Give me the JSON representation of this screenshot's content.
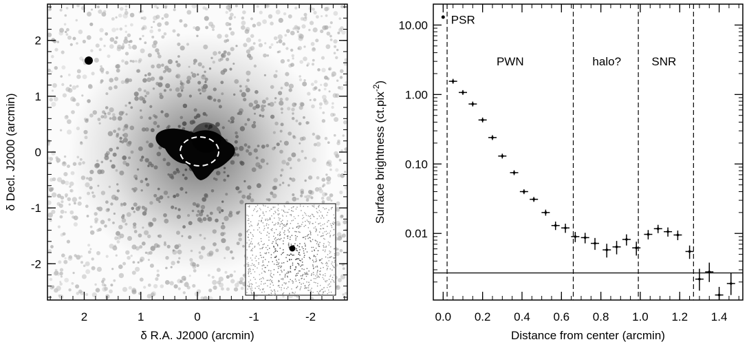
{
  "chart_data": [
    {
      "type": "image",
      "xlabel": "δ R.A. J2000 (arcmin)",
      "ylabel": "δ Decl. J2000 (arcmin)",
      "xlim": [
        2.65,
        -2.65
      ],
      "ylim": [
        -2.65,
        2.65
      ],
      "xticks": [
        2,
        1,
        0,
        -1,
        -2
      ],
      "xtick_labels": [
        "2",
        "1",
        "0",
        "-1",
        "-2"
      ],
      "yticks": [
        2,
        1,
        0,
        -1,
        -2
      ],
      "ytick_labels": [
        "2",
        "1",
        "0",
        "-1",
        "-2"
      ],
      "colormap": "inverted grayscale",
      "inset": true
    },
    {
      "type": "scatter",
      "error_bars": true,
      "xlabel": "Distance from center (arcmin)",
      "ylabel_main": "Surface brightness (ct.pix",
      "ylabel_sup": "-2",
      "ylabel_end": ")",
      "xlim": [
        -0.05,
        1.52
      ],
      "ylim": [
        0.0011,
        20
      ],
      "yscale": "log",
      "xticks": [
        0.0,
        0.2,
        0.4,
        0.6,
        0.8,
        1.0,
        1.2,
        1.4
      ],
      "xtick_labels": [
        "0.0",
        "0.2",
        "0.4",
        "0.6",
        "0.8",
        "1.0",
        "1.2",
        "1.4"
      ],
      "yticks": [
        10,
        1,
        0.1,
        0.01
      ],
      "ytick_labels": [
        "10.00",
        "1.00",
        "0.10",
        "0.01"
      ],
      "x": [
        0.0,
        0.05,
        0.1,
        0.15,
        0.2,
        0.25,
        0.3,
        0.36,
        0.41,
        0.46,
        0.52,
        0.57,
        0.62,
        0.67,
        0.72,
        0.77,
        0.83,
        0.88,
        0.93,
        0.98,
        1.04,
        1.09,
        1.14,
        1.19,
        1.25,
        1.3,
        1.35,
        1.4,
        1.46
      ],
      "y": [
        13.0,
        1.55,
        1.07,
        0.73,
        0.43,
        0.24,
        0.13,
        0.075,
        0.04,
        0.031,
        0.02,
        0.013,
        0.012,
        0.009,
        0.0087,
        0.0072,
        0.0058,
        0.0064,
        0.0082,
        0.0062,
        0.0097,
        0.0117,
        0.0106,
        0.0095,
        0.0055,
        0.0022,
        0.0028,
        0.0013,
        0.0019
      ],
      "yerr_lo": [
        0,
        0.04,
        0.03,
        0.02,
        0.015,
        0.01,
        0.006,
        0.004,
        0.003,
        0.0025,
        0.002,
        0.0018,
        0.0018,
        0.0015,
        0.0015,
        0.0014,
        0.0013,
        0.0014,
        0.0015,
        0.0014,
        0.0015,
        0.0016,
        0.0016,
        0.0015,
        0.0012,
        0.0007,
        0.0008,
        0.0002,
        0.0006
      ],
      "yerr_hi": [
        0,
        0.04,
        0.03,
        0.02,
        0.015,
        0.01,
        0.006,
        0.004,
        0.003,
        0.0025,
        0.002,
        0.0018,
        0.0018,
        0.0015,
        0.0015,
        0.0014,
        0.0013,
        0.0014,
        0.0015,
        0.0014,
        0.0015,
        0.0016,
        0.0016,
        0.0015,
        0.0012,
        0.0009,
        0.001,
        0.0004,
        0.0008
      ],
      "hline": 0.0027,
      "vlines": [
        0.02,
        0.66,
        0.99,
        1.27
      ],
      "annotations": [
        {
          "text": "PSR",
          "x": 0.04,
          "y": 12.0
        },
        {
          "text": "PWN",
          "x": 0.34,
          "y": 3.0
        },
        {
          "text": "halo?",
          "x": 0.83,
          "y": 3.0
        },
        {
          "text": "SNR",
          "x": 1.12,
          "y": 3.0
        }
      ]
    }
  ]
}
